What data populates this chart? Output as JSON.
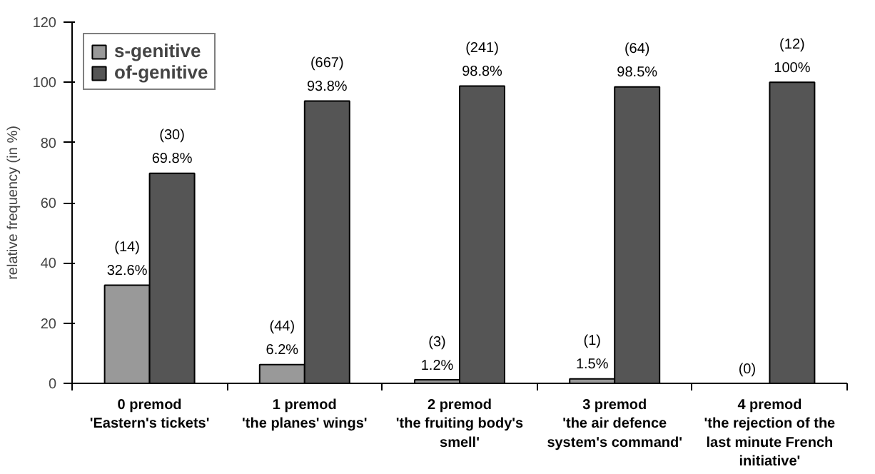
{
  "chart_data": {
    "type": "bar",
    "categories": [
      "0 premod\n'Eastern's tickets'",
      "1 premod\n'the planes' wings'",
      "2 premod\n'the fruiting body's\nsmell'",
      "3 premod\n'the air defence\nsystem's command'",
      "4 premod\n'the rejection of the\nlast minute French\ninitiative'"
    ],
    "series": [
      {
        "name": "s-genitive",
        "color": "#999999",
        "values": [
          32.6,
          6.2,
          1.2,
          1.5,
          0
        ],
        "value_labels": [
          "(14)\n32.6%",
          "(44)\n6.2%",
          "(3)\n1.2%",
          "(1)\n1.5%",
          "(0)"
        ]
      },
      {
        "name": "of-genitive",
        "color": "#555555",
        "values": [
          69.8,
          93.8,
          98.8,
          98.5,
          100
        ],
        "value_labels": [
          "(30)\n69.8%",
          "(667)\n93.8%",
          "(241)\n98.8%",
          "(64)\n98.5%",
          "(12)\n100%"
        ]
      }
    ],
    "ylabel": "relative frequency (in %)",
    "ylim": [
      0,
      120
    ],
    "yticks": [
      0,
      20,
      40,
      60,
      80,
      100,
      120
    ],
    "grid": false,
    "legend": "top left"
  }
}
